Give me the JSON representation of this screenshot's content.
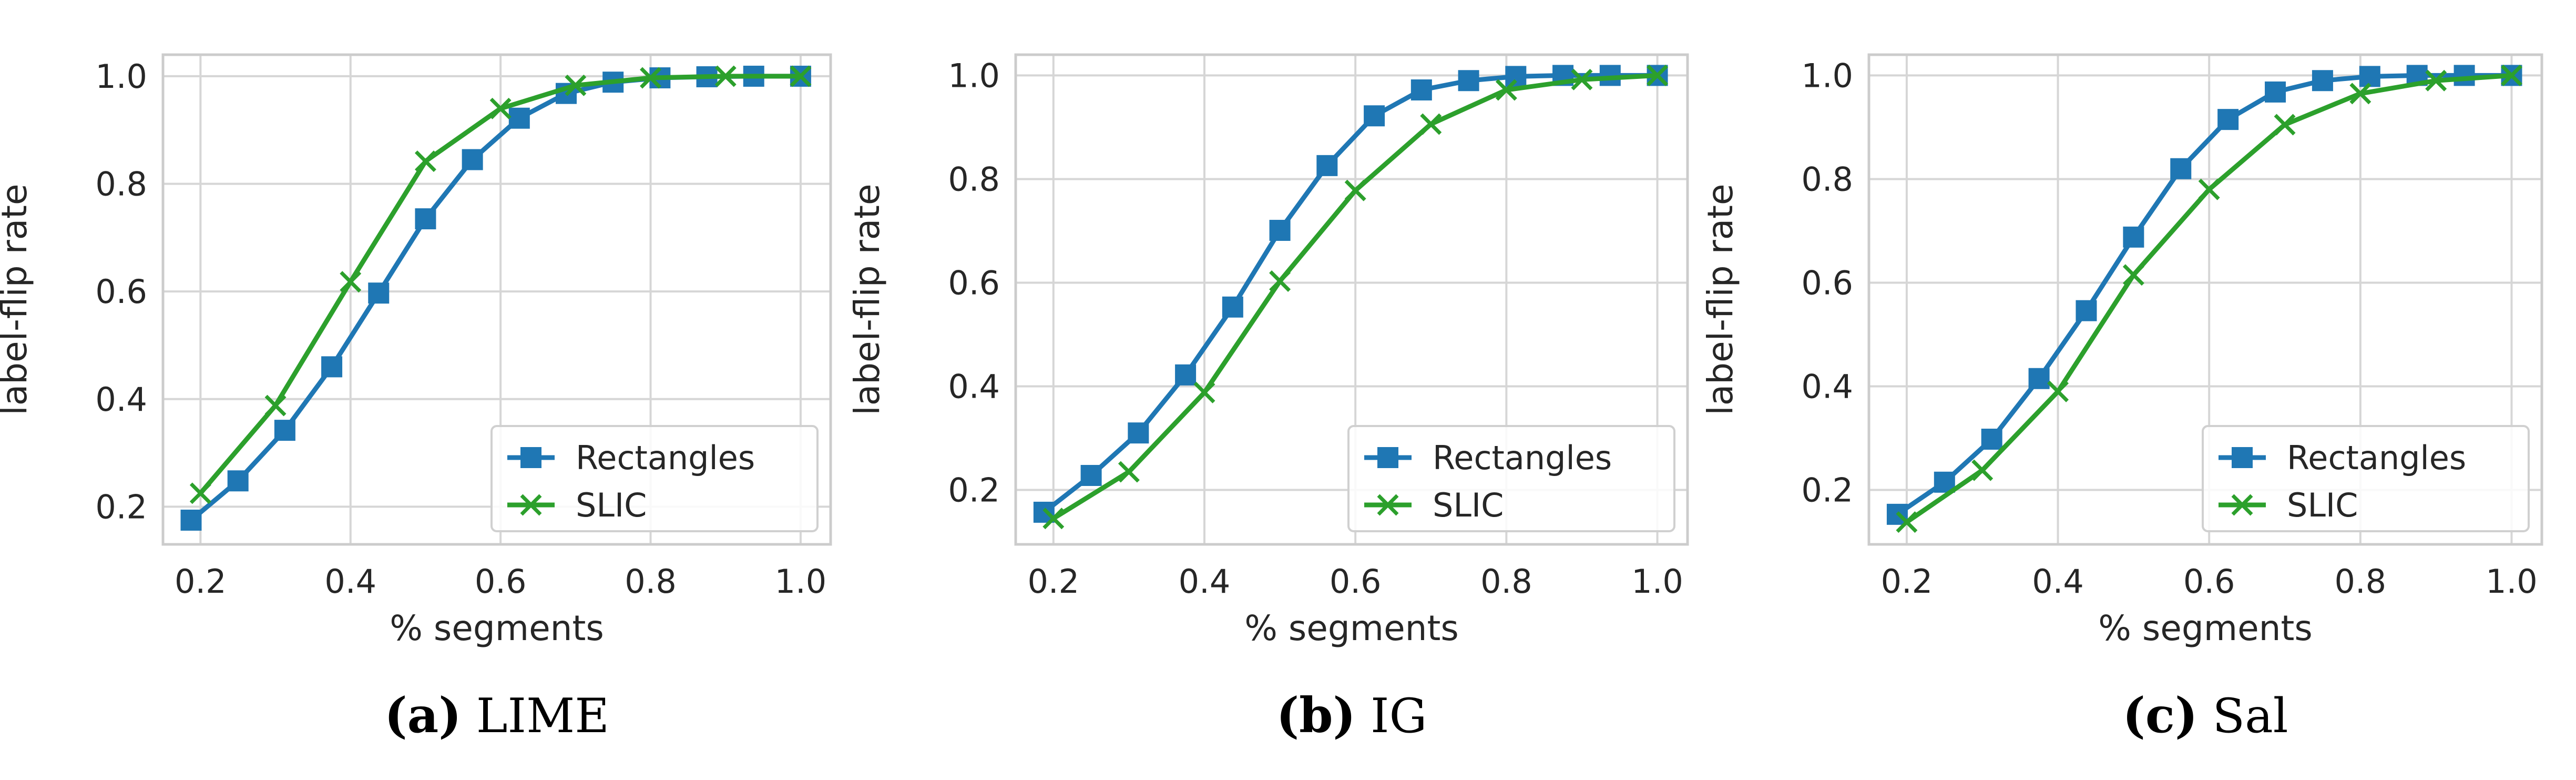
{
  "colors": {
    "rectangles": "#1f77b4",
    "slic": "#2ca02c",
    "grid": "#d6d6d6",
    "frame": "#cccccc"
  },
  "chart_data": [
    {
      "type": "line",
      "caption_letter": "(a)",
      "caption_text": "LIME",
      "xlabel": "% segments",
      "ylabel": "label-flip rate",
      "xlim": [
        0.15,
        1.04
      ],
      "ylim": [
        0.13,
        1.04
      ],
      "xticks": [
        0.2,
        0.4,
        0.6,
        0.8,
        1.0
      ],
      "yticks": [
        0.2,
        0.4,
        0.6,
        0.8,
        1.0
      ],
      "xtick_labels": [
        "0.2",
        "0.4",
        "0.6",
        "0.8",
        "1.0"
      ],
      "ytick_labels": [
        "0.2",
        "0.4",
        "0.6",
        "0.8",
        "1.0"
      ],
      "grid": true,
      "legend_position": "lower-right",
      "series": [
        {
          "name": "Rectangles",
          "marker": "square",
          "x": [
            0.1875,
            0.25,
            0.3125,
            0.375,
            0.4375,
            0.5,
            0.5625,
            0.625,
            0.6875,
            0.75,
            0.8125,
            0.875,
            0.9375,
            1.0
          ],
          "y": [
            0.175,
            0.248,
            0.342,
            0.46,
            0.597,
            0.735,
            0.845,
            0.922,
            0.968,
            0.989,
            0.997,
            0.999,
            1.0,
            1.0
          ]
        },
        {
          "name": "SLIC",
          "marker": "x",
          "x": [
            0.2,
            0.3,
            0.4,
            0.5,
            0.6,
            0.7,
            0.8,
            0.9,
            1.0
          ],
          "y": [
            0.225,
            0.388,
            0.618,
            0.842,
            0.94,
            0.983,
            0.997,
            1.0,
            1.0
          ]
        }
      ]
    },
    {
      "type": "line",
      "caption_letter": "(b)",
      "caption_text": "IG",
      "xlabel": "% segments",
      "ylabel": "label-flip rate",
      "xlim": [
        0.15,
        1.04
      ],
      "ylim": [
        0.095,
        1.04
      ],
      "xticks": [
        0.2,
        0.4,
        0.6,
        0.8,
        1.0
      ],
      "yticks": [
        0.2,
        0.4,
        0.6,
        0.8,
        1.0
      ],
      "xtick_labels": [
        "0.2",
        "0.4",
        "0.6",
        "0.8",
        "1.0"
      ],
      "ytick_labels": [
        "0.2",
        "0.4",
        "0.6",
        "0.8",
        "1.0"
      ],
      "grid": true,
      "legend_position": "lower-right",
      "series": [
        {
          "name": "Rectangles",
          "marker": "square",
          "x": [
            0.1875,
            0.25,
            0.3125,
            0.375,
            0.4375,
            0.5,
            0.5625,
            0.625,
            0.6875,
            0.75,
            0.8125,
            0.875,
            0.9375,
            1.0
          ],
          "y": [
            0.157,
            0.228,
            0.31,
            0.422,
            0.553,
            0.701,
            0.826,
            0.922,
            0.972,
            0.99,
            0.998,
            1.0,
            1.0,
            1.0
          ]
        },
        {
          "name": "SLIC",
          "marker": "x",
          "x": [
            0.2,
            0.3,
            0.4,
            0.5,
            0.6,
            0.7,
            0.8,
            0.9,
            1.0
          ],
          "y": [
            0.145,
            0.235,
            0.388,
            0.603,
            0.778,
            0.906,
            0.972,
            0.992,
            1.0
          ]
        }
      ]
    },
    {
      "type": "line",
      "caption_letter": "(c)",
      "caption_text": "Sal",
      "xlabel": "% segments",
      "ylabel": "label-flip rate",
      "xlim": [
        0.15,
        1.04
      ],
      "ylim": [
        0.095,
        1.04
      ],
      "xticks": [
        0.2,
        0.4,
        0.6,
        0.8,
        1.0
      ],
      "yticks": [
        0.2,
        0.4,
        0.6,
        0.8,
        1.0
      ],
      "xtick_labels": [
        "0.2",
        "0.4",
        "0.6",
        "0.8",
        "1.0"
      ],
      "ytick_labels": [
        "0.2",
        "0.4",
        "0.6",
        "0.8",
        "1.0"
      ],
      "grid": true,
      "legend_position": "lower-right",
      "series": [
        {
          "name": "Rectangles",
          "marker": "square",
          "x": [
            0.1875,
            0.25,
            0.3125,
            0.375,
            0.4375,
            0.5,
            0.5625,
            0.625,
            0.6875,
            0.75,
            0.8125,
            0.875,
            0.9375,
            1.0
          ],
          "y": [
            0.153,
            0.215,
            0.298,
            0.415,
            0.546,
            0.688,
            0.82,
            0.915,
            0.968,
            0.99,
            0.998,
            1.0,
            1.0,
            1.0
          ]
        },
        {
          "name": "SLIC",
          "marker": "x",
          "x": [
            0.2,
            0.3,
            0.4,
            0.5,
            0.6,
            0.7,
            0.8,
            0.9,
            1.0
          ],
          "y": [
            0.138,
            0.238,
            0.39,
            0.615,
            0.78,
            0.905,
            0.965,
            0.99,
            1.0
          ]
        }
      ]
    }
  ]
}
